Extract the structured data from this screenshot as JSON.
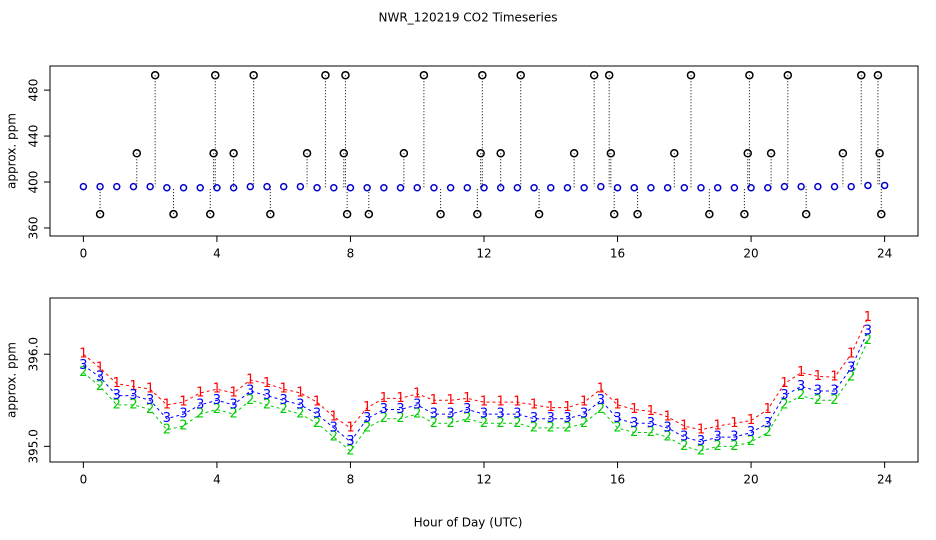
{
  "chart_data": [
    {
      "type": "scatter",
      "title": "NWR_120219  CO2 Timeseries",
      "ylabel": "approx. ppm",
      "xlim": [
        -1,
        25
      ],
      "ylim": [
        353,
        501
      ],
      "xticks": [
        0,
        4,
        8,
        12,
        16,
        20,
        24
      ],
      "yticks": [
        360,
        400,
        440,
        480
      ],
      "series": [
        {
          "color": "#000000",
          "marker": "circle",
          "stems": true,
          "x": [
            0.5,
            2.7,
            3.8,
            5.6,
            7.9,
            8.55,
            10.7,
            11.8,
            13.65,
            15.9,
            16.6,
            18.75,
            19.8,
            21.65,
            23.9,
            1.6,
            3.9,
            4.5,
            6.7,
            7.8,
            9.6,
            11.9,
            12.5,
            14.7,
            15.8,
            17.7,
            19.9,
            20.6,
            22.75,
            23.85,
            2.15,
            3.95,
            5.1,
            7.25,
            7.85,
            10.2,
            11.95,
            13.1,
            15.3,
            15.75,
            18.2,
            19.95,
            21.1,
            23.3,
            23.8
          ],
          "values": [
            372,
            372,
            372,
            372,
            372,
            372,
            372,
            372,
            372,
            372,
            372,
            372,
            372,
            372,
            372,
            425,
            425,
            425,
            425,
            425,
            425,
            425,
            425,
            425,
            425,
            425,
            425,
            425,
            425,
            425,
            493,
            493,
            493,
            493,
            493,
            493,
            493,
            493,
            493,
            493,
            493,
            493,
            493,
            493,
            493
          ]
        },
        {
          "color": "#0000cc",
          "marker": "circle",
          "stems": false,
          "x": [
            0,
            0.5,
            1,
            1.5,
            2,
            2.5,
            3,
            3.5,
            4,
            4.5,
            5,
            5.5,
            6,
            6.5,
            7,
            7.5,
            8,
            8.5,
            9,
            9.5,
            10,
            10.5,
            11,
            11.5,
            12,
            12.5,
            13,
            13.5,
            14,
            14.5,
            15,
            15.5,
            16,
            16.5,
            17,
            17.5,
            18,
            18.5,
            19,
            19.5,
            20,
            20.5,
            21,
            21.5,
            22,
            22.5,
            23,
            23.5,
            24
          ],
          "values": [
            396,
            396,
            396,
            396,
            396,
            395,
            395,
            395,
            395,
            395,
            396,
            396,
            396,
            396,
            395,
            395,
            395,
            395,
            395,
            395,
            395,
            395,
            395,
            395,
            395,
            395,
            395,
            395,
            395,
            395,
            395,
            396,
            395,
            395,
            395,
            395,
            395,
            395,
            395,
            395,
            395,
            395,
            396,
            396,
            396,
            396,
            396,
            397,
            397
          ]
        }
      ]
    },
    {
      "type": "scatter",
      "ylabel": "approx. ppm",
      "xlabel": "Hour of Day (UTC)",
      "xlim": [
        -1,
        25
      ],
      "ylim": [
        394.83,
        396.61
      ],
      "xticks": [
        0,
        4,
        8,
        12,
        16,
        20,
        24
      ],
      "yticks": [
        {
          "value": 395,
          "label": "395.0"
        },
        {
          "value": 396,
          "label": "396.0"
        }
      ],
      "series": [
        {
          "color": "#ff0000",
          "marker": "1",
          "x": [
            0,
            0.5,
            1,
            1.5,
            2,
            2.5,
            3,
            3.5,
            4,
            4.5,
            5,
            5.5,
            6,
            6.5,
            7,
            7.5,
            8,
            8.5,
            9,
            9.5,
            10,
            10.5,
            11,
            11.5,
            12,
            12.5,
            13,
            13.5,
            14,
            14.5,
            15,
            15.5,
            16,
            16.5,
            17,
            17.5,
            18,
            18.5,
            19,
            19.5,
            20,
            20.5,
            21,
            21.5,
            22,
            22.5,
            23,
            23.5
          ],
          "values": [
            396.0,
            395.85,
            395.68,
            395.65,
            395.62,
            395.45,
            395.48,
            395.58,
            395.62,
            395.58,
            395.72,
            395.68,
            395.62,
            395.58,
            395.48,
            395.32,
            395.2,
            395.42,
            395.52,
            395.52,
            395.57,
            395.5,
            395.5,
            395.52,
            395.48,
            395.48,
            395.48,
            395.45,
            395.42,
            395.42,
            395.48,
            395.62,
            395.45,
            395.4,
            395.38,
            395.32,
            395.22,
            395.18,
            395.22,
            395.25,
            395.28,
            395.4,
            395.68,
            395.8,
            395.76,
            395.75,
            396.0,
            396.4
          ]
        },
        {
          "color": "#00cc00",
          "marker": "2",
          "x": [
            0,
            0.5,
            1,
            1.5,
            2,
            2.5,
            3,
            3.5,
            4,
            4.5,
            5,
            5.5,
            6,
            6.5,
            7,
            7.5,
            8,
            8.5,
            9,
            9.5,
            10,
            10.5,
            11,
            11.5,
            12,
            12.5,
            13,
            13.5,
            14,
            14.5,
            15,
            15.5,
            16,
            16.5,
            17,
            17.5,
            18,
            18.5,
            19,
            19.5,
            20,
            20.5,
            21,
            21.5,
            22,
            22.5,
            23,
            23.5
          ],
          "values": [
            395.8,
            395.65,
            395.45,
            395.45,
            395.4,
            395.18,
            395.22,
            395.35,
            395.4,
            395.35,
            395.5,
            395.45,
            395.4,
            395.35,
            395.25,
            395.1,
            394.95,
            395.2,
            395.3,
            395.3,
            395.35,
            395.25,
            395.25,
            395.3,
            395.25,
            395.25,
            395.25,
            395.2,
            395.2,
            395.2,
            395.25,
            395.4,
            395.2,
            395.15,
            395.15,
            395.1,
            395.0,
            394.95,
            395.0,
            395.0,
            395.05,
            395.15,
            395.45,
            395.55,
            395.5,
            395.5,
            395.75,
            396.15
          ]
        },
        {
          "color": "#0000ff",
          "marker": "3",
          "x": [
            0,
            0.5,
            1,
            1.5,
            2,
            2.5,
            3,
            3.5,
            4,
            4.5,
            5,
            5.5,
            6,
            6.5,
            7,
            7.5,
            8,
            8.5,
            9,
            9.5,
            10,
            10.5,
            11,
            11.5,
            12,
            12.5,
            13,
            13.5,
            14,
            14.5,
            15,
            15.5,
            16,
            16.5,
            17,
            17.5,
            18,
            18.5,
            19,
            19.5,
            20,
            20.5,
            21,
            21.5,
            22,
            22.5,
            23,
            23.5
          ],
          "values": [
            395.88,
            395.75,
            395.55,
            395.55,
            395.5,
            395.3,
            395.35,
            395.45,
            395.5,
            395.45,
            395.6,
            395.55,
            395.5,
            395.45,
            395.35,
            395.2,
            395.05,
            395.3,
            395.4,
            395.4,
            395.45,
            395.35,
            395.35,
            395.4,
            395.35,
            395.35,
            395.35,
            395.3,
            395.3,
            395.3,
            395.35,
            395.5,
            395.3,
            395.25,
            395.25,
            395.2,
            395.1,
            395.05,
            395.1,
            395.1,
            395.15,
            395.25,
            395.55,
            395.65,
            395.6,
            395.6,
            395.85,
            396.25
          ]
        }
      ]
    }
  ]
}
